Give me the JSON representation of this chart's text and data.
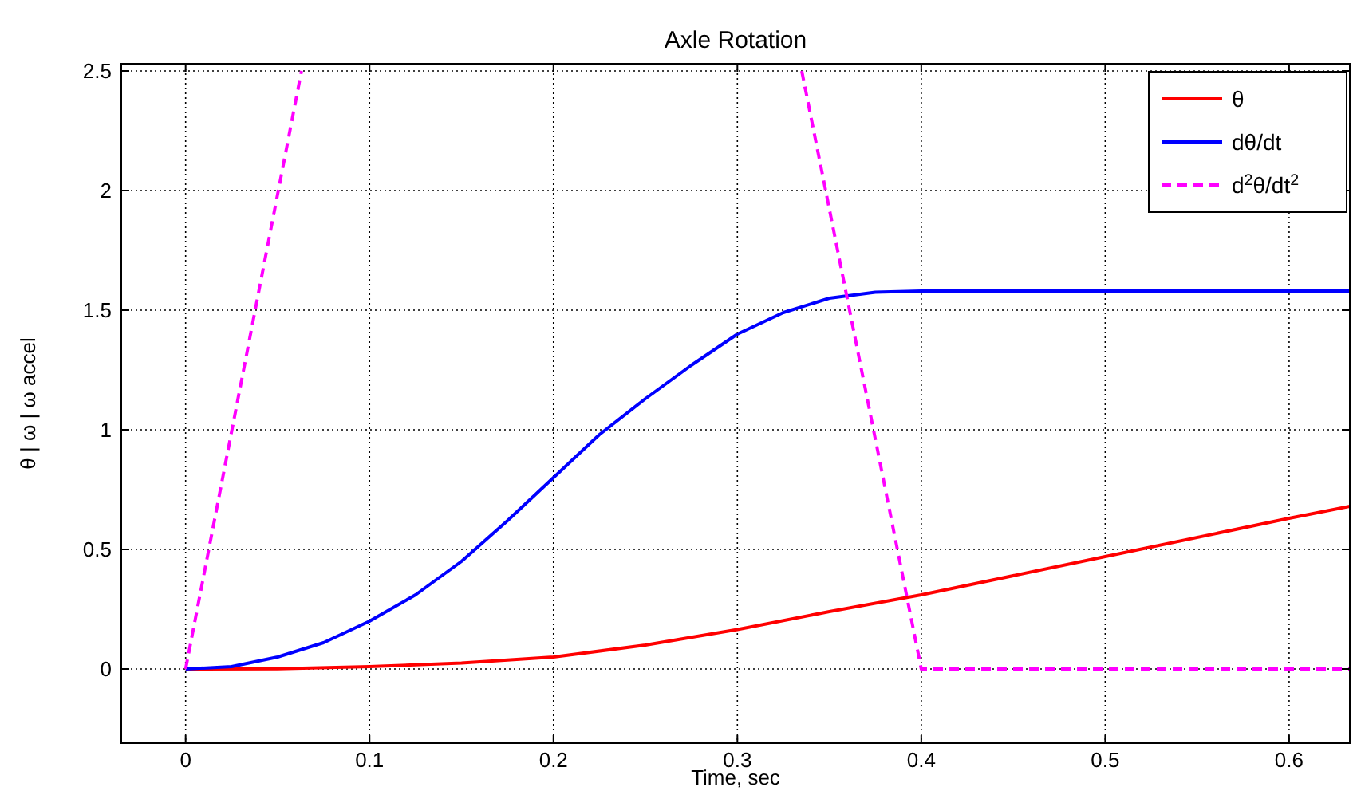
{
  "chart_data": {
    "type": "line",
    "title": "Axle Rotation",
    "xlabel": "Time, sec",
    "ylabel": "θ | ω | ω accel",
    "xlim": [
      -0.035,
      0.633
    ],
    "ylim": [
      -0.31,
      2.53
    ],
    "xticks": [
      0,
      0.1,
      0.2,
      0.3,
      0.4,
      0.5,
      0.6
    ],
    "yticks": [
      0,
      0.5,
      1,
      1.5,
      2,
      2.5
    ],
    "grid": true,
    "legend": "top right",
    "marker": "none",
    "series": [
      {
        "name": "θ",
        "color": "#ff0000",
        "line_style": "solid",
        "x": [
          0,
          0.05,
          0.1,
          0.15,
          0.2,
          0.25,
          0.3,
          0.35,
          0.4,
          0.5,
          0.6,
          0.633
        ],
        "values": [
          0,
          0.001,
          0.01,
          0.025,
          0.05,
          0.1,
          0.165,
          0.24,
          0.31,
          0.47,
          0.63,
          0.68
        ]
      },
      {
        "name": "dθ/dt",
        "color": "#0000ff",
        "line_style": "solid",
        "x": [
          0,
          0.025,
          0.05,
          0.075,
          0.1,
          0.125,
          0.15,
          0.175,
          0.2,
          0.225,
          0.25,
          0.275,
          0.3,
          0.325,
          0.35,
          0.375,
          0.4,
          0.5,
          0.633
        ],
        "values": [
          0,
          0.01,
          0.05,
          0.11,
          0.2,
          0.31,
          0.45,
          0.62,
          0.8,
          0.98,
          1.13,
          1.27,
          1.4,
          1.49,
          1.55,
          1.575,
          1.58,
          1.58,
          1.58
        ]
      },
      {
        "name": "d$^{2}$θ/dt$^{2}$",
        "color": "#ff00ff",
        "line_style": "dashed",
        "x": [
          0,
          0.063,
          0.2,
          0.335,
          0.4,
          0.633
        ],
        "values": [
          0,
          2.5,
          null,
          2.5,
          0,
          0
        ]
      }
    ]
  }
}
